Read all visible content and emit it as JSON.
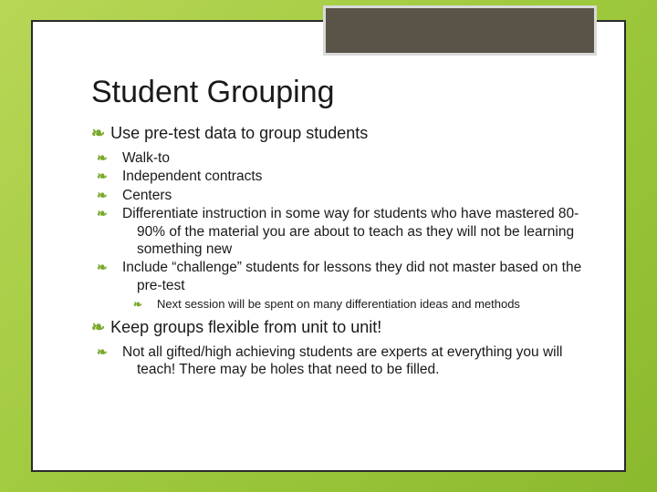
{
  "background_gradient": [
    "#b8d657",
    "#9ec93d",
    "#8bb92e"
  ],
  "frame": {
    "border_color": "#2a2a2a",
    "background": "#ffffff"
  },
  "header_box": {
    "fill": "#5a5448",
    "border": "#d9d9d9"
  },
  "flourish_glyph": "❧",
  "flourish_color": "#7aa82c",
  "title": "Student Grouping",
  "title_fontsize": 34,
  "bullets": {
    "a": {
      "text": "Use pre-test data to group students",
      "sub": [
        {
          "text": "Walk-to"
        },
        {
          "text": "Independent contracts"
        },
        {
          "text": "Centers"
        },
        {
          "text": "Differentiate instruction in some way for students who have mastered 80-90% of the material you are about to teach as they will not be learning something new"
        },
        {
          "text": "Include “challenge” students for lessons they did not master based on the pre-test",
          "sub": [
            {
              "text": "Next session will be spent on many differentiation ideas and methods"
            }
          ]
        }
      ]
    },
    "b": {
      "text": "Keep groups flexible from unit to unit!",
      "sub": [
        {
          "text": "Not all gifted/high achieving students are experts at everything you will teach!  There may be holes that need to be filled."
        }
      ]
    }
  }
}
